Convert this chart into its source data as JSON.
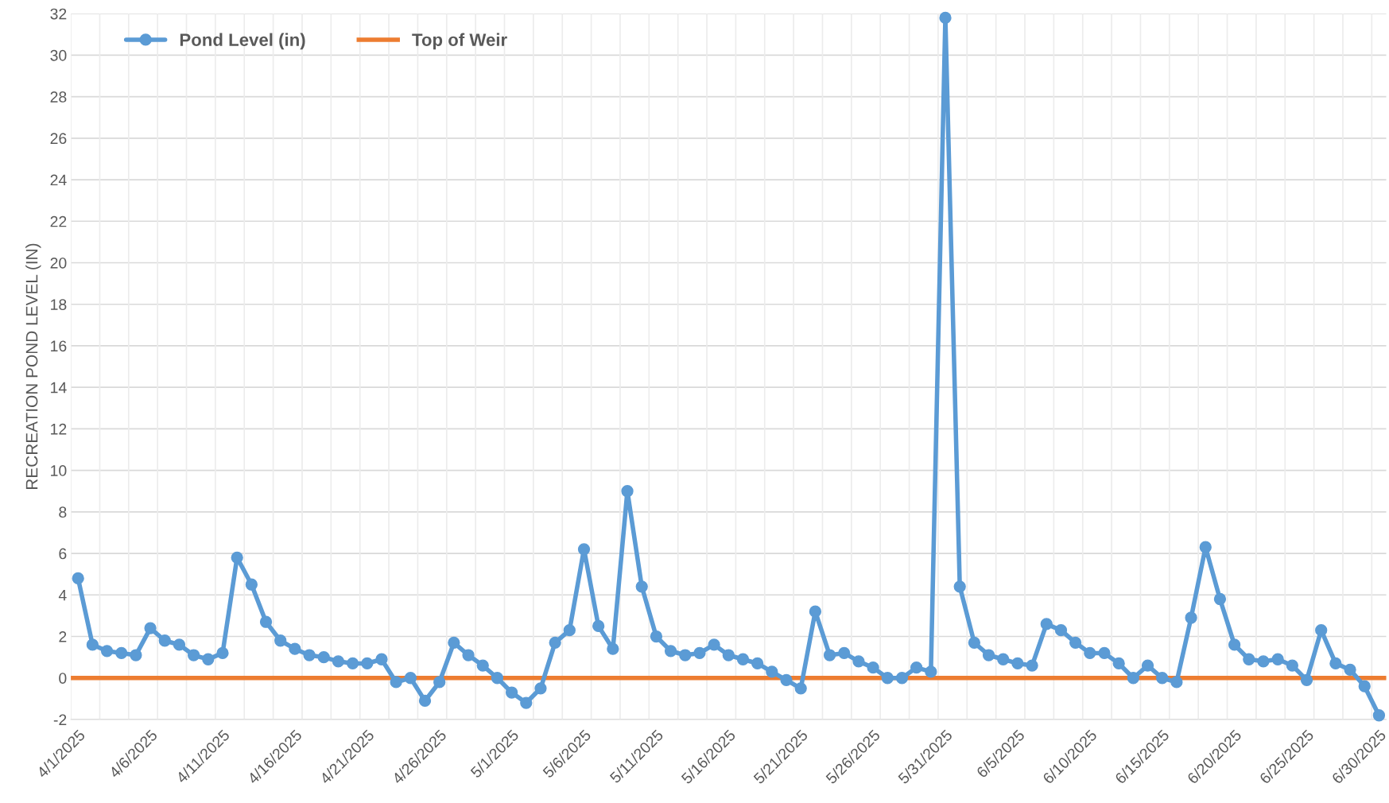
{
  "chart_data": {
    "type": "line",
    "ylabel": "RECREATION POND LEVEL (IN)",
    "x": [
      "2025-04-01",
      "2025-04-02",
      "2025-04-03",
      "2025-04-04",
      "2025-04-05",
      "2025-04-06",
      "2025-04-07",
      "2025-04-08",
      "2025-04-09",
      "2025-04-10",
      "2025-04-11",
      "2025-04-12",
      "2025-04-13",
      "2025-04-14",
      "2025-04-15",
      "2025-04-16",
      "2025-04-17",
      "2025-04-18",
      "2025-04-19",
      "2025-04-20",
      "2025-04-21",
      "2025-04-22",
      "2025-04-23",
      "2025-04-24",
      "2025-04-25",
      "2025-04-26",
      "2025-04-27",
      "2025-04-28",
      "2025-04-29",
      "2025-04-30",
      "2025-05-01",
      "2025-05-02",
      "2025-05-03",
      "2025-05-04",
      "2025-05-05",
      "2025-05-06",
      "2025-05-07",
      "2025-05-08",
      "2025-05-09",
      "2025-05-10",
      "2025-05-11",
      "2025-05-12",
      "2025-05-13",
      "2025-05-14",
      "2025-05-15",
      "2025-05-16",
      "2025-05-17",
      "2025-05-18",
      "2025-05-19",
      "2025-05-20",
      "2025-05-21",
      "2025-05-22",
      "2025-05-23",
      "2025-05-24",
      "2025-05-25",
      "2025-05-26",
      "2025-05-27",
      "2025-05-28",
      "2025-05-29",
      "2025-05-30",
      "2025-05-31",
      "2025-06-01",
      "2025-06-02",
      "2025-06-03",
      "2025-06-04",
      "2025-06-05",
      "2025-06-06",
      "2025-06-07",
      "2025-06-08",
      "2025-06-09",
      "2025-06-10",
      "2025-06-11",
      "2025-06-12",
      "2025-06-13",
      "2025-06-14",
      "2025-06-15",
      "2025-06-16",
      "2025-06-17",
      "2025-06-18",
      "2025-06-19",
      "2025-06-20",
      "2025-06-21",
      "2025-06-22",
      "2025-06-23",
      "2025-06-24",
      "2025-06-25",
      "2025-06-26",
      "2025-06-27",
      "2025-06-28",
      "2025-06-29",
      "2025-06-30"
    ],
    "series": [
      {
        "name": "Pond Level (in)",
        "color": "#5b9bd5",
        "values": [
          4.8,
          1.6,
          1.3,
          1.2,
          1.1,
          2.4,
          1.8,
          1.6,
          1.1,
          0.9,
          1.2,
          5.8,
          4.5,
          2.7,
          1.8,
          1.4,
          1.1,
          1.0,
          0.8,
          0.7,
          0.7,
          0.9,
          -0.2,
          0,
          -1.1,
          -0.2,
          1.7,
          1.1,
          0.6,
          0,
          -0.7,
          -1.2,
          -0.5,
          1.7,
          2.3,
          6.2,
          2.5,
          1.4,
          9.0,
          4.4,
          2.0,
          1.3,
          1.1,
          1.2,
          1.6,
          1.1,
          0.9,
          0.7,
          0.3,
          -0.1,
          -0.5,
          3.2,
          1.1,
          1.2,
          0.8,
          0.5,
          0,
          0,
          0.5,
          0.3,
          31.8,
          4.4,
          1.7,
          1.1,
          0.9,
          0.7,
          0.6,
          2.6,
          2.3,
          1.7,
          1.2,
          1.2,
          0.7,
          0,
          0.6,
          0,
          -0.2,
          2.9,
          6.3,
          3.8,
          1.6,
          0.9,
          0.8,
          0.9,
          0.6,
          -0.1,
          2.3,
          0.7,
          0.4,
          -0.4,
          -1.8
        ]
      }
    ],
    "ref_lines": [
      {
        "axis": "y",
        "value": 0,
        "label": "Top of Weir",
        "color": "#ed7d31",
        "line_style": "solid"
      }
    ],
    "xlim": [
      "2025-03-31T12:00",
      "2025-06-30T12:00"
    ],
    "xticks": [
      {
        "value": "2025-04-01",
        "label": "4/1/2025"
      },
      {
        "value": "2025-04-06",
        "label": "4/6/2025"
      },
      {
        "value": "2025-04-11",
        "label": "4/11/2025"
      },
      {
        "value": "2025-04-16",
        "label": "4/16/2025"
      },
      {
        "value": "2025-04-21",
        "label": "4/21/2025"
      },
      {
        "value": "2025-04-26",
        "label": "4/26/2025"
      },
      {
        "value": "2025-05-01",
        "label": "5/1/2025"
      },
      {
        "value": "2025-05-06",
        "label": "5/6/2025"
      },
      {
        "value": "2025-05-11",
        "label": "5/11/2025"
      },
      {
        "value": "2025-05-16",
        "label": "5/16/2025"
      },
      {
        "value": "2025-05-21",
        "label": "5/21/2025"
      },
      {
        "value": "2025-05-26",
        "label": "5/26/2025"
      },
      {
        "value": "2025-05-31",
        "label": "5/31/2025"
      },
      {
        "value": "2025-06-05",
        "label": "6/5/2025"
      },
      {
        "value": "2025-06-10",
        "label": "6/10/2025"
      },
      {
        "value": "2025-06-15",
        "label": "6/15/2025"
      },
      {
        "value": "2025-06-20",
        "label": "6/20/2025"
      },
      {
        "value": "2025-06-25",
        "label": "6/25/2025"
      },
      {
        "value": "2025-06-30",
        "label": "6/30/2025"
      }
    ],
    "ylim": [
      -2,
      32
    ],
    "yticks": [
      -2,
      0,
      2,
      4,
      6,
      8,
      10,
      12,
      14,
      16,
      18,
      20,
      22,
      24,
      26,
      28,
      30,
      32
    ],
    "grid": true,
    "legend": "top left",
    "marker": "circle",
    "line_style": "solid"
  }
}
